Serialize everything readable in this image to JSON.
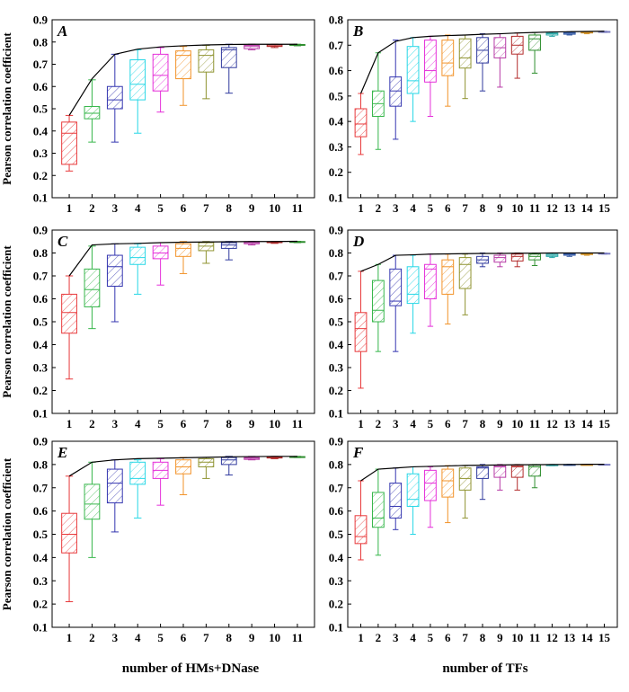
{
  "x_label_left": "number of HMs+DNase",
  "x_label_right": "number of TFs",
  "colors": [
    "#e8393b",
    "#36b64a",
    "#3436b0",
    "#27d7e6",
    "#e52fd9",
    "#f2932a",
    "#8f9330",
    "#303a9e",
    "#b73aa6",
    "#b32b2b",
    "#2e8e2e",
    "#27a6a6",
    "#3a5fa8",
    "#d4942a",
    "#7a7cc0"
  ],
  "chart_data": [
    {
      "type": "box",
      "panel": "A",
      "ylabel": "Pearson correlation coefficient",
      "ylim": [
        0.1,
        0.9
      ],
      "yticks": [
        "0.1",
        "0.2",
        "0.3",
        "0.4",
        "0.5",
        "0.6",
        "0.7",
        "0.8",
        "0.9"
      ],
      "categories": [
        "1",
        "2",
        "3",
        "4",
        "5",
        "6",
        "7",
        "8",
        "9",
        "10",
        "11"
      ],
      "boxes": [
        {
          "lw": 0.22,
          "q1": 0.25,
          "med": 0.39,
          "q3": 0.44,
          "uw": 0.47
        },
        {
          "lw": 0.35,
          "q1": 0.455,
          "med": 0.48,
          "q3": 0.51,
          "uw": 0.63
        },
        {
          "lw": 0.35,
          "q1": 0.5,
          "med": 0.54,
          "q3": 0.6,
          "uw": 0.745
        },
        {
          "lw": 0.39,
          "q1": 0.54,
          "med": 0.61,
          "q3": 0.72,
          "uw": 0.765
        },
        {
          "lw": 0.485,
          "q1": 0.58,
          "med": 0.65,
          "q3": 0.745,
          "uw": 0.775
        },
        {
          "lw": 0.515,
          "q1": 0.635,
          "med": 0.74,
          "q3": 0.76,
          "uw": 0.78
        },
        {
          "lw": 0.545,
          "q1": 0.665,
          "med": 0.74,
          "q3": 0.765,
          "uw": 0.785
        },
        {
          "lw": 0.57,
          "q1": 0.685,
          "med": 0.765,
          "q3": 0.775,
          "uw": 0.79
        },
        {
          "lw": 0.765,
          "q1": 0.77,
          "med": 0.78,
          "q3": 0.785,
          "uw": 0.79
        },
        {
          "lw": 0.775,
          "q1": 0.78,
          "med": 0.782,
          "q3": 0.787,
          "uw": 0.79
        },
        {
          "lw": 0.783,
          "q1": 0.785,
          "med": 0.787,
          "q3": 0.789,
          "uw": 0.79
        }
      ],
      "max_line": [
        0.47,
        0.635,
        0.745,
        0.768,
        0.778,
        0.783,
        0.787,
        0.789,
        0.79,
        0.79,
        0.79
      ]
    },
    {
      "type": "box",
      "panel": "B",
      "ylabel": "",
      "ylim": [
        0.1,
        0.8
      ],
      "yticks": [
        "0.1",
        "0.2",
        "0.3",
        "0.4",
        "0.5",
        "0.6",
        "0.7",
        "0.8"
      ],
      "categories": [
        "1",
        "2",
        "3",
        "4",
        "5",
        "6",
        "7",
        "8",
        "9",
        "10",
        "11",
        "12",
        "13",
        "14",
        "15"
      ],
      "boxes": [
        {
          "lw": 0.27,
          "q1": 0.34,
          "med": 0.39,
          "q3": 0.45,
          "uw": 0.51
        },
        {
          "lw": 0.29,
          "q1": 0.42,
          "med": 0.47,
          "q3": 0.52,
          "uw": 0.67
        },
        {
          "lw": 0.33,
          "q1": 0.46,
          "med": 0.52,
          "q3": 0.575,
          "uw": 0.72
        },
        {
          "lw": 0.4,
          "q1": 0.51,
          "med": 0.56,
          "q3": 0.695,
          "uw": 0.73
        },
        {
          "lw": 0.42,
          "q1": 0.555,
          "med": 0.6,
          "q3": 0.72,
          "uw": 0.735
        },
        {
          "lw": 0.46,
          "q1": 0.58,
          "med": 0.63,
          "q3": 0.72,
          "uw": 0.74
        },
        {
          "lw": 0.49,
          "q1": 0.61,
          "med": 0.65,
          "q3": 0.725,
          "uw": 0.74
        },
        {
          "lw": 0.52,
          "q1": 0.63,
          "med": 0.68,
          "q3": 0.73,
          "uw": 0.745
        },
        {
          "lw": 0.535,
          "q1": 0.65,
          "med": 0.69,
          "q3": 0.73,
          "uw": 0.745
        },
        {
          "lw": 0.57,
          "q1": 0.665,
          "med": 0.7,
          "q3": 0.735,
          "uw": 0.748
        },
        {
          "lw": 0.59,
          "q1": 0.68,
          "med": 0.725,
          "q3": 0.74,
          "uw": 0.75
        },
        {
          "lw": 0.735,
          "q1": 0.74,
          "med": 0.745,
          "q3": 0.748,
          "uw": 0.752
        },
        {
          "lw": 0.74,
          "q1": 0.743,
          "med": 0.747,
          "q3": 0.75,
          "uw": 0.753
        },
        {
          "lw": 0.745,
          "q1": 0.748,
          "med": 0.75,
          "q3": 0.752,
          "uw": 0.754
        },
        {
          "lw": 0.75,
          "q1": 0.751,
          "med": 0.753,
          "q3": 0.754,
          "uw": 0.755
        }
      ],
      "max_line": [
        0.51,
        0.67,
        0.715,
        0.73,
        0.735,
        0.738,
        0.74,
        0.743,
        0.745,
        0.748,
        0.75,
        0.752,
        0.753,
        0.754,
        0.755
      ]
    },
    {
      "type": "box",
      "panel": "C",
      "ylabel": "Pearson correlation coefficient",
      "ylim": [
        0.1,
        0.9
      ],
      "yticks": [
        "0.1",
        "0.2",
        "0.3",
        "0.4",
        "0.5",
        "0.6",
        "0.7",
        "0.8",
        "0.9"
      ],
      "categories": [
        "1",
        "2",
        "3",
        "4",
        "5",
        "6",
        "7",
        "8",
        "9",
        "10",
        "11"
      ],
      "boxes": [
        {
          "lw": 0.25,
          "q1": 0.45,
          "med": 0.54,
          "q3": 0.62,
          "uw": 0.7
        },
        {
          "lw": 0.47,
          "q1": 0.565,
          "med": 0.64,
          "q3": 0.73,
          "uw": 0.83
        },
        {
          "lw": 0.5,
          "q1": 0.655,
          "med": 0.74,
          "q3": 0.79,
          "uw": 0.84
        },
        {
          "lw": 0.62,
          "q1": 0.75,
          "med": 0.78,
          "q3": 0.825,
          "uw": 0.84
        },
        {
          "lw": 0.66,
          "q1": 0.775,
          "med": 0.8,
          "q3": 0.83,
          "uw": 0.845
        },
        {
          "lw": 0.71,
          "q1": 0.785,
          "med": 0.82,
          "q3": 0.84,
          "uw": 0.85
        },
        {
          "lw": 0.755,
          "q1": 0.81,
          "med": 0.83,
          "q3": 0.845,
          "uw": 0.85
        },
        {
          "lw": 0.77,
          "q1": 0.82,
          "med": 0.835,
          "q3": 0.845,
          "uw": 0.85
        },
        {
          "lw": 0.835,
          "q1": 0.84,
          "med": 0.845,
          "q3": 0.848,
          "uw": 0.85
        },
        {
          "lw": 0.842,
          "q1": 0.845,
          "med": 0.847,
          "q3": 0.849,
          "uw": 0.85
        },
        {
          "lw": 0.845,
          "q1": 0.847,
          "med": 0.849,
          "q3": 0.85,
          "uw": 0.851
        }
      ],
      "max_line": [
        0.7,
        0.835,
        0.84,
        0.842,
        0.845,
        0.847,
        0.848,
        0.849,
        0.85,
        0.85,
        0.851
      ]
    },
    {
      "type": "box",
      "panel": "D",
      "ylabel": "",
      "ylim": [
        0.1,
        0.9
      ],
      "yticks": [
        "0.1",
        "0.2",
        "0.3",
        "0.4",
        "0.5",
        "0.6",
        "0.7",
        "0.8",
        "0.9"
      ],
      "categories": [
        "1",
        "2",
        "3",
        "4",
        "5",
        "6",
        "7",
        "8",
        "9",
        "10",
        "11",
        "12",
        "13",
        "14",
        "15"
      ],
      "boxes": [
        {
          "lw": 0.21,
          "q1": 0.37,
          "med": 0.47,
          "q3": 0.54,
          "uw": 0.72
        },
        {
          "lw": 0.37,
          "q1": 0.5,
          "med": 0.55,
          "q3": 0.68,
          "uw": 0.75
        },
        {
          "lw": 0.37,
          "q1": 0.57,
          "med": 0.59,
          "q3": 0.73,
          "uw": 0.79
        },
        {
          "lw": 0.45,
          "q1": 0.58,
          "med": 0.62,
          "q3": 0.74,
          "uw": 0.79
        },
        {
          "lw": 0.48,
          "q1": 0.6,
          "med": 0.73,
          "q3": 0.75,
          "uw": 0.795
        },
        {
          "lw": 0.49,
          "q1": 0.62,
          "med": 0.74,
          "q3": 0.77,
          "uw": 0.795
        },
        {
          "lw": 0.53,
          "q1": 0.645,
          "med": 0.75,
          "q3": 0.78,
          "uw": 0.795
        },
        {
          "lw": 0.74,
          "q1": 0.755,
          "med": 0.77,
          "q3": 0.785,
          "uw": 0.8
        },
        {
          "lw": 0.74,
          "q1": 0.76,
          "med": 0.78,
          "q3": 0.79,
          "uw": 0.8
        },
        {
          "lw": 0.74,
          "q1": 0.765,
          "med": 0.785,
          "q3": 0.795,
          "uw": 0.8
        },
        {
          "lw": 0.745,
          "q1": 0.77,
          "med": 0.785,
          "q3": 0.795,
          "uw": 0.8
        },
        {
          "lw": 0.78,
          "q1": 0.785,
          "med": 0.79,
          "q3": 0.795,
          "uw": 0.8
        },
        {
          "lw": 0.785,
          "q1": 0.79,
          "med": 0.792,
          "q3": 0.796,
          "uw": 0.8
        },
        {
          "lw": 0.79,
          "q1": 0.793,
          "med": 0.795,
          "q3": 0.798,
          "uw": 0.8
        },
        {
          "lw": 0.795,
          "q1": 0.796,
          "med": 0.798,
          "q3": 0.799,
          "uw": 0.8
        }
      ],
      "max_line": [
        0.72,
        0.75,
        0.79,
        0.792,
        0.795,
        0.796,
        0.797,
        0.798,
        0.798,
        0.799,
        0.799,
        0.8,
        0.8,
        0.8,
        0.8
      ]
    },
    {
      "type": "box",
      "panel": "E",
      "ylabel": "Pearson correlation coefficient",
      "ylim": [
        0.1,
        0.9
      ],
      "yticks": [
        "0.1",
        "0.2",
        "0.3",
        "0.4",
        "0.5",
        "0.6",
        "0.7",
        "0.8",
        "0.9"
      ],
      "categories": [
        "1",
        "2",
        "3",
        "4",
        "5",
        "6",
        "7",
        "8",
        "9",
        "10",
        "11"
      ],
      "boxes": [
        {
          "lw": 0.21,
          "q1": 0.42,
          "med": 0.5,
          "q3": 0.59,
          "uw": 0.75
        },
        {
          "lw": 0.4,
          "q1": 0.565,
          "med": 0.63,
          "q3": 0.715,
          "uw": 0.81
        },
        {
          "lw": 0.51,
          "q1": 0.635,
          "med": 0.72,
          "q3": 0.78,
          "uw": 0.82
        },
        {
          "lw": 0.57,
          "q1": 0.715,
          "med": 0.74,
          "q3": 0.81,
          "uw": 0.82
        },
        {
          "lw": 0.625,
          "q1": 0.74,
          "med": 0.775,
          "q3": 0.81,
          "uw": 0.825
        },
        {
          "lw": 0.67,
          "q1": 0.76,
          "med": 0.79,
          "q3": 0.82,
          "uw": 0.83
        },
        {
          "lw": 0.74,
          "q1": 0.79,
          "med": 0.81,
          "q3": 0.825,
          "uw": 0.83
        },
        {
          "lw": 0.755,
          "q1": 0.8,
          "med": 0.82,
          "q3": 0.83,
          "uw": 0.835
        },
        {
          "lw": 0.82,
          "q1": 0.822,
          "med": 0.827,
          "q3": 0.83,
          "uw": 0.835
        },
        {
          "lw": 0.825,
          "q1": 0.828,
          "med": 0.83,
          "q3": 0.833,
          "uw": 0.835
        },
        {
          "lw": 0.83,
          "q1": 0.831,
          "med": 0.833,
          "q3": 0.834,
          "uw": 0.835
        }
      ],
      "max_line": [
        0.75,
        0.81,
        0.82,
        0.825,
        0.827,
        0.829,
        0.831,
        0.833,
        0.834,
        0.835,
        0.835
      ]
    },
    {
      "type": "box",
      "panel": "F",
      "ylabel": "",
      "ylim": [
        0.1,
        0.9
      ],
      "yticks": [
        "0.1",
        "0.2",
        "0.3",
        "0.4",
        "0.5",
        "0.6",
        "0.7",
        "0.8",
        "0.9"
      ],
      "categories": [
        "1",
        "2",
        "3",
        "4",
        "5",
        "6",
        "7",
        "8",
        "9",
        "10",
        "11",
        "12",
        "13",
        "14",
        "15"
      ],
      "boxes": [
        {
          "lw": 0.39,
          "q1": 0.46,
          "med": 0.49,
          "q3": 0.58,
          "uw": 0.73
        },
        {
          "lw": 0.41,
          "q1": 0.53,
          "med": 0.57,
          "q3": 0.68,
          "uw": 0.78
        },
        {
          "lw": 0.52,
          "q1": 0.57,
          "med": 0.62,
          "q3": 0.72,
          "uw": 0.785
        },
        {
          "lw": 0.5,
          "q1": 0.62,
          "med": 0.65,
          "q3": 0.76,
          "uw": 0.79
        },
        {
          "lw": 0.53,
          "q1": 0.645,
          "med": 0.72,
          "q3": 0.775,
          "uw": 0.79
        },
        {
          "lw": 0.55,
          "q1": 0.66,
          "med": 0.73,
          "q3": 0.78,
          "uw": 0.795
        },
        {
          "lw": 0.57,
          "q1": 0.69,
          "med": 0.74,
          "q3": 0.785,
          "uw": 0.795
        },
        {
          "lw": 0.65,
          "q1": 0.74,
          "med": 0.785,
          "q3": 0.79,
          "uw": 0.8
        },
        {
          "lw": 0.69,
          "q1": 0.745,
          "med": 0.79,
          "q3": 0.795,
          "uw": 0.8
        },
        {
          "lw": 0.69,
          "q1": 0.745,
          "med": 0.79,
          "q3": 0.795,
          "uw": 0.8
        },
        {
          "lw": 0.7,
          "q1": 0.75,
          "med": 0.79,
          "q3": 0.797,
          "uw": 0.8
        },
        {
          "lw": 0.795,
          "q1": 0.797,
          "med": 0.798,
          "q3": 0.799,
          "uw": 0.8
        },
        {
          "lw": 0.797,
          "q1": 0.798,
          "med": 0.799,
          "q3": 0.8,
          "uw": 0.801
        },
        {
          "lw": 0.798,
          "q1": 0.799,
          "med": 0.8,
          "q3": 0.8,
          "uw": 0.801
        },
        {
          "lw": 0.799,
          "q1": 0.8,
          "med": 0.8,
          "q3": 0.801,
          "uw": 0.801
        }
      ],
      "max_line": [
        0.73,
        0.78,
        0.785,
        0.79,
        0.792,
        0.794,
        0.796,
        0.797,
        0.798,
        0.799,
        0.799,
        0.8,
        0.8,
        0.801,
        0.801
      ]
    }
  ]
}
